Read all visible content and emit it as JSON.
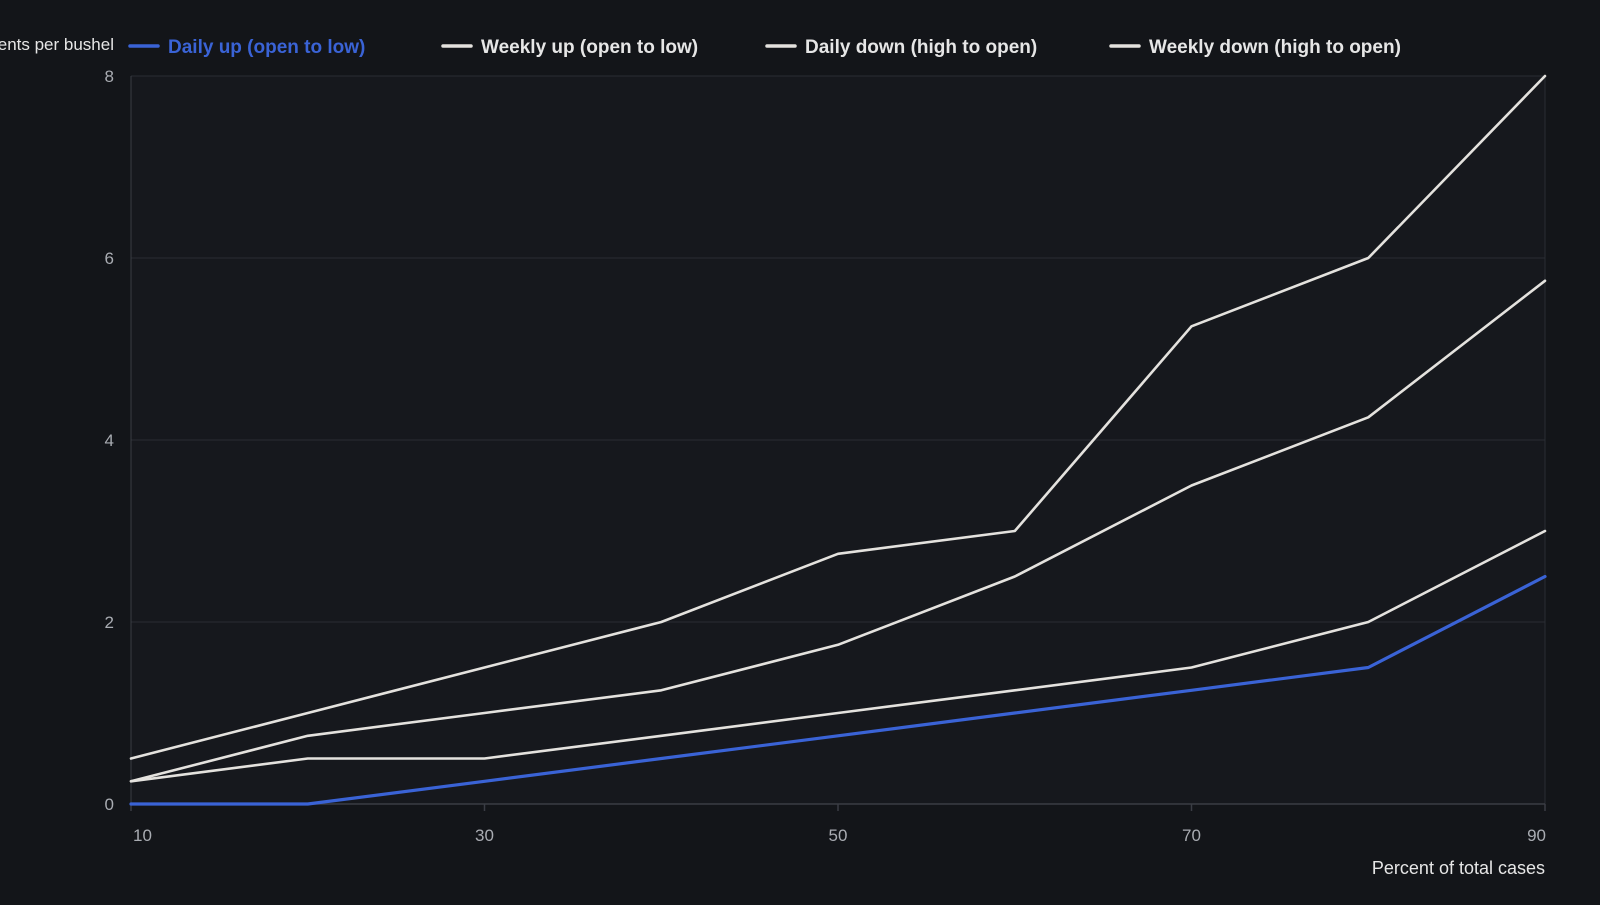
{
  "colors": {
    "background": "#131519",
    "plot_background": "#16181d",
    "gridline": "#2a2d33",
    "axis_text": "#a9acb2",
    "label_text": "#e6e6e6",
    "highlight": "#3a63d6",
    "neutral_series": "#e4e2de"
  },
  "chart_data": {
    "type": "line",
    "title": "",
    "xlabel": "Percent of total cases",
    "ylabel": "Cents per bushel",
    "xlim": [
      10,
      90
    ],
    "ylim": [
      0,
      8
    ],
    "xticks": [
      10,
      30,
      50,
      70,
      90
    ],
    "yticks": [
      0,
      2,
      4,
      6,
      8
    ],
    "grid": true,
    "legend_position": "top",
    "x": [
      10,
      20,
      30,
      40,
      50,
      60,
      70,
      80,
      90
    ],
    "series": [
      {
        "name": "Daily up (open to low)",
        "color": "#3a63d6",
        "highlighted": true,
        "values": [
          0,
          0,
          0.25,
          0.5,
          0.75,
          1.0,
          1.25,
          1.5,
          2.5
        ]
      },
      {
        "name": "Weekly up (open to low)",
        "color": "#e4e2de",
        "highlighted": false,
        "values": [
          0.25,
          0.75,
          1.0,
          1.25,
          1.75,
          2.5,
          3.5,
          4.25,
          5.75
        ]
      },
      {
        "name": "Daily down (high to open)",
        "color": "#e4e2de",
        "highlighted": false,
        "values": [
          0.25,
          0.5,
          0.5,
          0.75,
          1.0,
          1.25,
          1.5,
          2.0,
          3.0
        ]
      },
      {
        "name": "Weekly down (high to open)",
        "color": "#e4e2de",
        "highlighted": false,
        "values": [
          0.5,
          1.0,
          1.5,
          2.0,
          2.75,
          3.0,
          5.25,
          6.0,
          8.0
        ]
      }
    ]
  }
}
